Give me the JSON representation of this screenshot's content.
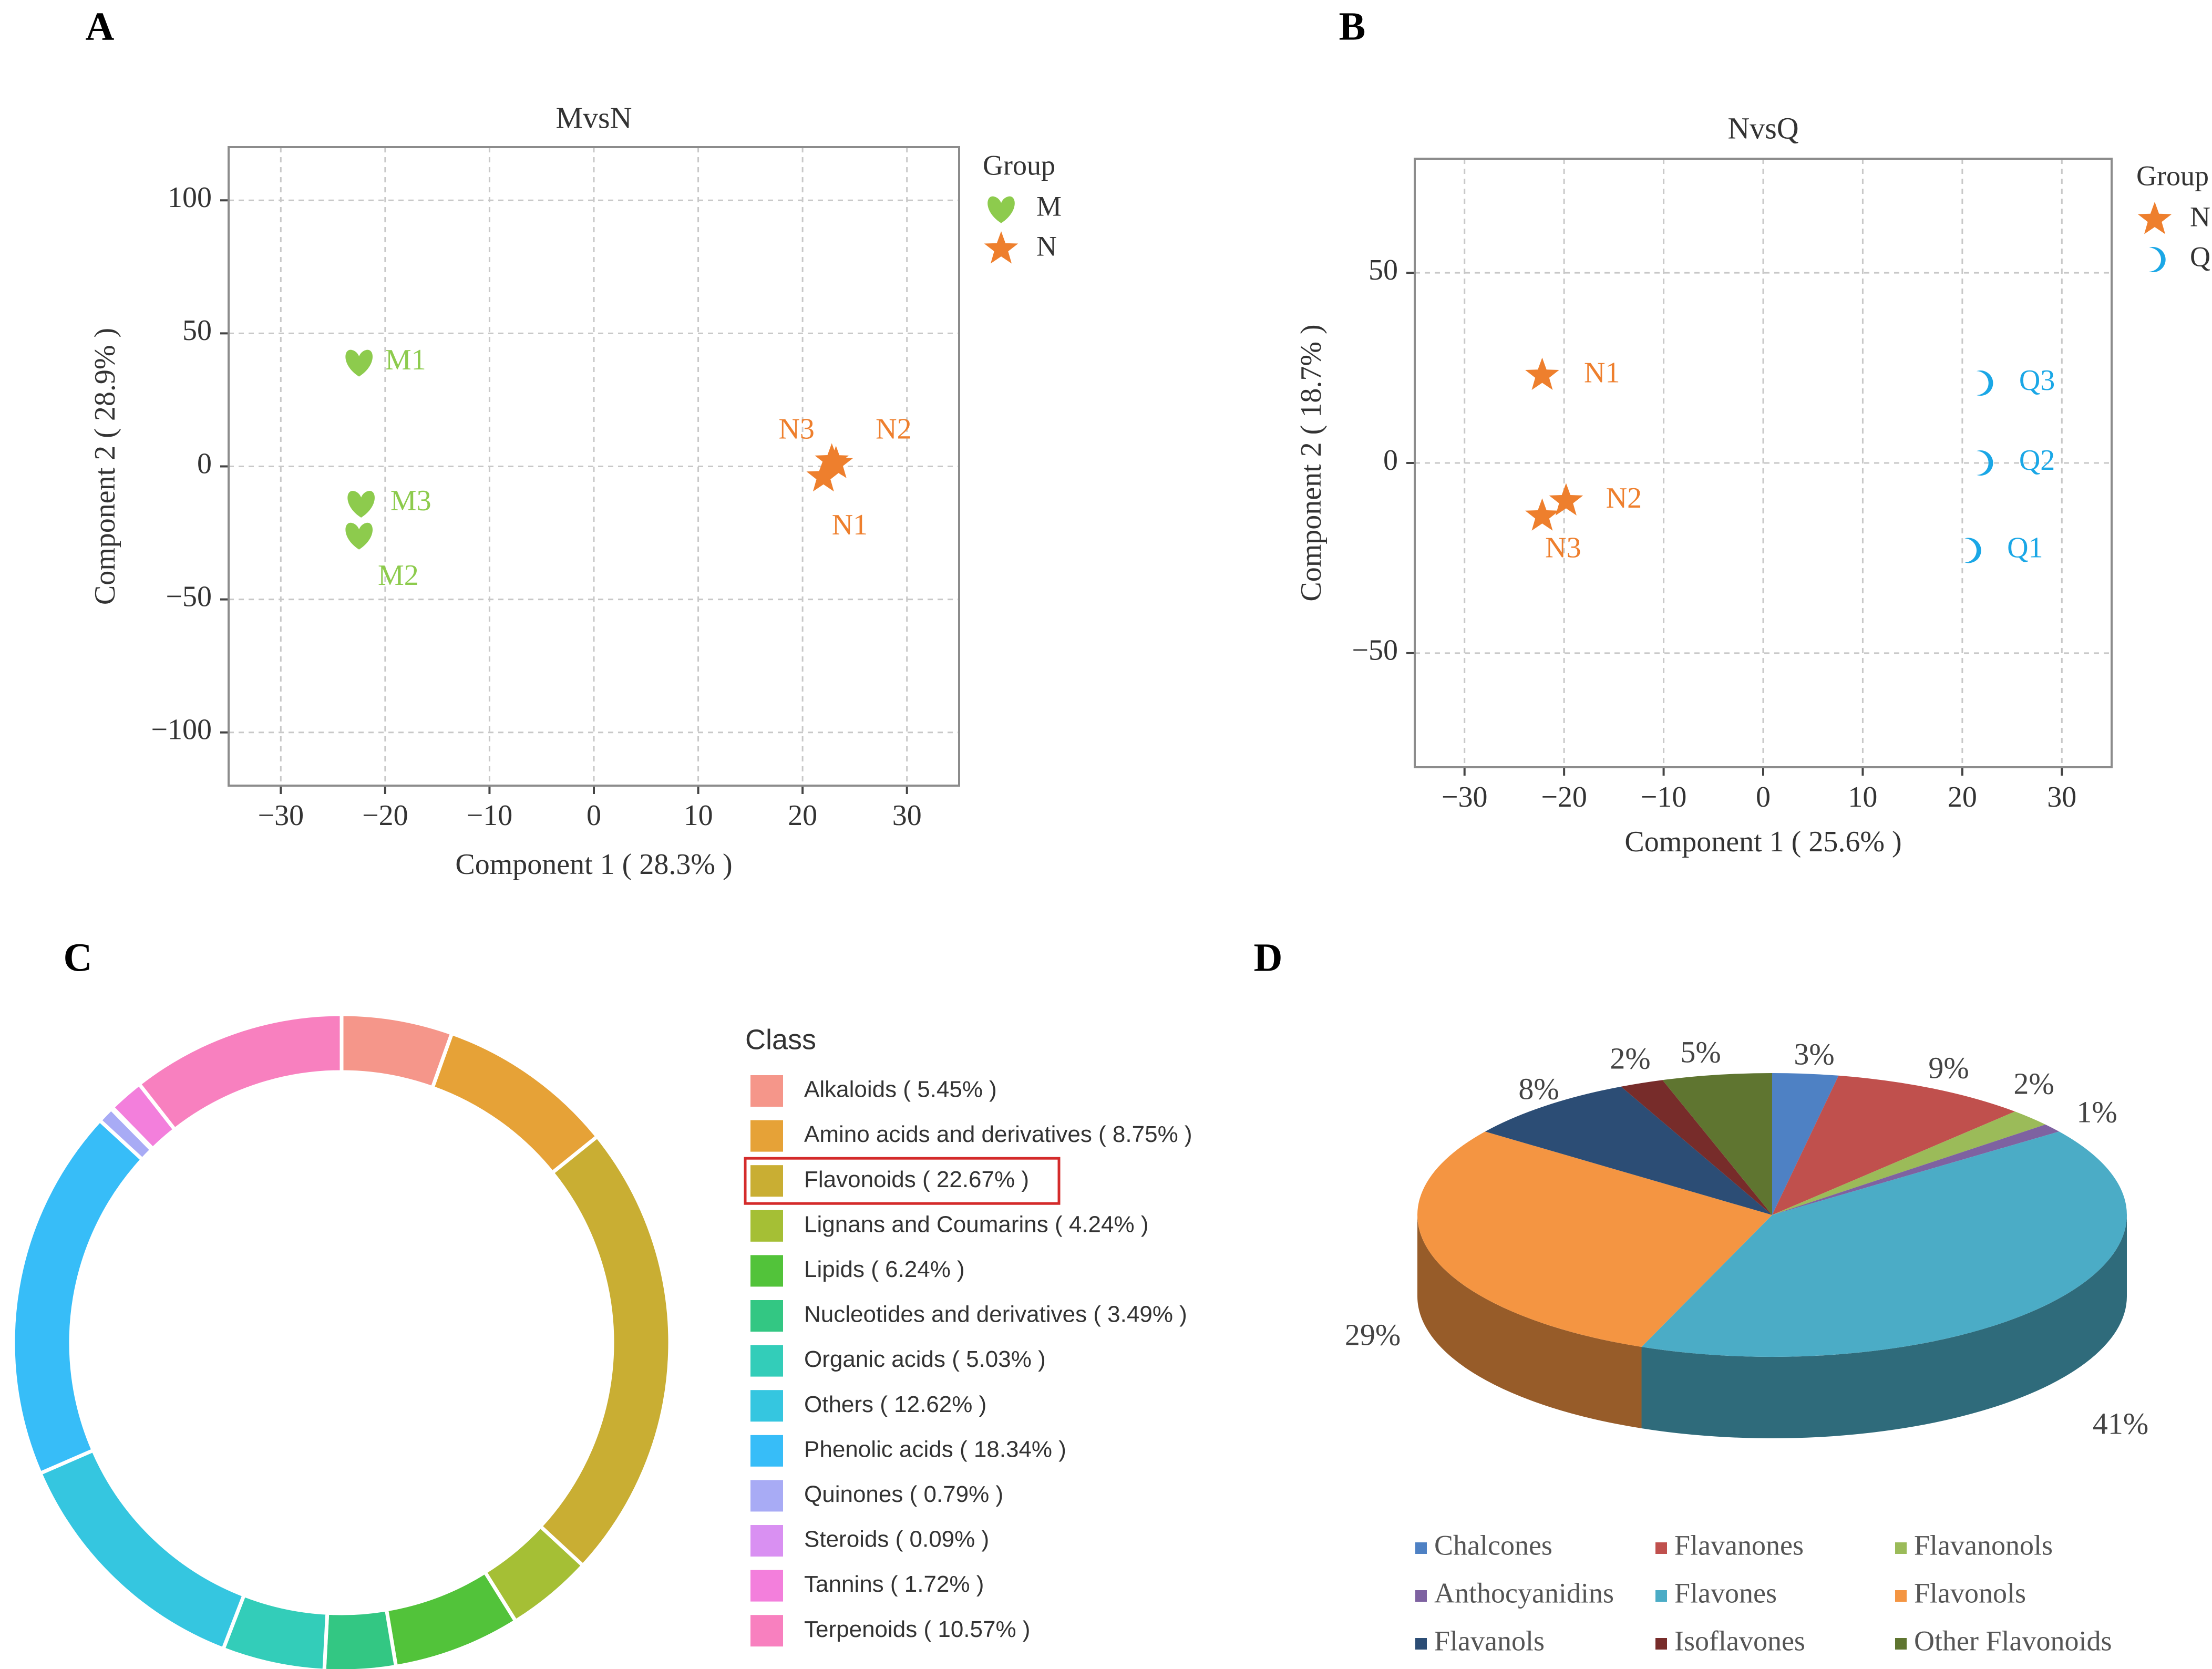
{
  "panel_labels": [
    "A",
    "B",
    "C",
    "D"
  ],
  "colors": {
    "M": "#8DCB4D",
    "N": "#EE7F2D",
    "Q": "#1AA7E6",
    "grid": "#C8C8C8",
    "axis": "#444444",
    "highlight_box": "#D42B2B"
  },
  "chart_data": [
    {
      "panel": "A",
      "type": "scatter",
      "title": "MvsN",
      "xlabel": "Component 1 ( 28.3% )",
      "ylabel": "Component 2 ( 28.9% )",
      "xlim": [
        -35,
        35
      ],
      "ylim": [
        -120,
        120
      ],
      "xticks": [
        -30,
        -20,
        -10,
        0,
        10,
        20,
        30
      ],
      "yticks": [
        100,
        50,
        0,
        -50,
        -100
      ],
      "xtick_labels": [
        "−30",
        "−20",
        "−10",
        "0",
        "10",
        "20",
        "30"
      ],
      "ytick_labels": [
        "100",
        "50",
        "0",
        "−50",
        "−100"
      ],
      "grid": true,
      "legend_title": "Group",
      "legend": [
        {
          "name": "M",
          "marker": "heart",
          "color_key": "M"
        },
        {
          "name": "N",
          "marker": "star",
          "color_key": "N"
        }
      ],
      "points": [
        {
          "label": "M1",
          "group": "M",
          "x": -22.5,
          "y": 39,
          "label_dx": 2.5,
          "label_dy": 0
        },
        {
          "label": "M3",
          "group": "M",
          "x": -22.3,
          "y": -14,
          "label_dx": 2.8,
          "label_dy": 0
        },
        {
          "label": "M2",
          "group": "M",
          "x": -22.5,
          "y": -26,
          "label_dx": 1.8,
          "label_dy": -16
        },
        {
          "label": "N2",
          "group": "N",
          "x": 22.8,
          "y": 2,
          "label_dx": 4.2,
          "label_dy": 11
        },
        {
          "label": "N3",
          "group": "N",
          "x": 23.2,
          "y": 1,
          "label_dx": -5.5,
          "label_dy": 12
        },
        {
          "label": "N1",
          "group": "N",
          "x": 22.0,
          "y": -4,
          "label_dx": 0.8,
          "label_dy": -19
        }
      ]
    },
    {
      "panel": "B",
      "type": "scatter",
      "title": "NvsQ",
      "xlabel": "Component 1 ( 25.6% )",
      "ylabel": "Component 2 ( 18.7% )",
      "xlim": [
        -35,
        35
      ],
      "ylim": [
        -80,
        80
      ],
      "xticks": [
        -30,
        -20,
        -10,
        0,
        10,
        20,
        30
      ],
      "yticks": [
        50,
        0,
        -50
      ],
      "xtick_labels": [
        "−30",
        "−20",
        "−10",
        "0",
        "10",
        "20",
        "30"
      ],
      "ytick_labels": [
        "50",
        "0",
        "−50"
      ],
      "grid": true,
      "legend_title": "Group",
      "legend": [
        {
          "name": "N",
          "marker": "star",
          "color_key": "N"
        },
        {
          "name": "Q",
          "marker": "moon",
          "color_key": "Q"
        }
      ],
      "points": [
        {
          "label": "N1",
          "group": "N",
          "x": -22.2,
          "y": 23,
          "label_dx": 4.2,
          "label_dy": 0
        },
        {
          "label": "N2",
          "group": "N",
          "x": -19.8,
          "y": -10,
          "label_dx": 4.0,
          "label_dy": 0
        },
        {
          "label": "N3",
          "group": "N",
          "x": -22.2,
          "y": -14,
          "label_dx": 0.3,
          "label_dy": -9
        },
        {
          "label": "Q3",
          "group": "Q",
          "x": 22.0,
          "y": 21,
          "label_dx": 3.7,
          "label_dy": 0
        },
        {
          "label": "Q2",
          "group": "Q",
          "x": 22.0,
          "y": 0,
          "label_dx": 3.7,
          "label_dy": 0
        },
        {
          "label": "Q1",
          "group": "Q",
          "x": 20.8,
          "y": -23,
          "label_dx": 3.7,
          "label_dy": 0
        }
      ]
    },
    {
      "panel": "C",
      "type": "pie",
      "style": "donut",
      "legend_title": "Class",
      "highlighted": "Flavonoids ( 22.67% )",
      "slices": [
        {
          "name": "Alkaloids",
          "label": "Alkaloids ( 5.45% )",
          "value": 5.45,
          "color": "#F5968A"
        },
        {
          "name": "Amino acids and derivatives",
          "label": "Amino acids and derivatives ( 8.75% )",
          "value": 8.75,
          "color": "#E6A237"
        },
        {
          "name": "Flavonoids",
          "label": "Flavonoids ( 22.67% )",
          "value": 22.67,
          "color": "#C9AE33"
        },
        {
          "name": "Lignans and Coumarins",
          "label": "Lignans and Coumarins ( 4.24% )",
          "value": 4.24,
          "color": "#A5BF35"
        },
        {
          "name": "Lipids",
          "label": "Lipids ( 6.24% )",
          "value": 6.24,
          "color": "#52C33A"
        },
        {
          "name": "Nucleotides and derivatives",
          "label": "Nucleotides and derivatives ( 3.49% )",
          "value": 3.49,
          "color": "#33C783"
        },
        {
          "name": "Organic acids",
          "label": "Organic acids ( 5.03% )",
          "value": 5.03,
          "color": "#33CDB9"
        },
        {
          "name": "Others",
          "label": "Others ( 12.62% )",
          "value": 12.62,
          "color": "#35C6E0"
        },
        {
          "name": "Phenolic acids",
          "label": "Phenolic acids ( 18.34% )",
          "value": 18.34,
          "color": "#37BDF8"
        },
        {
          "name": "Quinones",
          "label": "Quinones ( 0.79% )",
          "value": 0.79,
          "color": "#A8ABF5"
        },
        {
          "name": "Steroids",
          "label": "Steroids ( 0.09% )",
          "value": 0.09,
          "color": "#D990F2"
        },
        {
          "name": "Tannins",
          "label": "Tannins ( 1.72% )",
          "value": 1.72,
          "color": "#F37FDC"
        },
        {
          "name": "Terpenoids",
          "label": "Terpenoids ( 10.57% )",
          "value": 10.57,
          "color": "#F880BF"
        }
      ]
    },
    {
      "panel": "D",
      "type": "pie",
      "style": "3d",
      "slices": [
        {
          "name": "Chalcones",
          "value": 3,
          "label": "3%",
          "color": "#4E81C4"
        },
        {
          "name": "Flavanones",
          "value": 9,
          "label": "9%",
          "color": "#C0504D"
        },
        {
          "name": "Flavanonols",
          "value": 2,
          "label": "2%",
          "color": "#9BBB59"
        },
        {
          "name": "Anthocyanidins",
          "value": 1,
          "label": "1%",
          "color": "#7E62A1"
        },
        {
          "name": "Flavones",
          "value": 41,
          "label": "41%",
          "color": "#4BACC6"
        },
        {
          "name": "Flavonols",
          "value": 29,
          "label": "29%",
          "color": "#F49542"
        },
        {
          "name": "Flavanols",
          "value": 8,
          "label": "8%",
          "color": "#2C4D75"
        },
        {
          "name": "Isoflavones",
          "value": 2,
          "label": "2%",
          "color": "#772C2A"
        },
        {
          "name": "Other Flavonoids",
          "value": 5,
          "label": "5%",
          "color": "#5F7530"
        }
      ]
    }
  ]
}
